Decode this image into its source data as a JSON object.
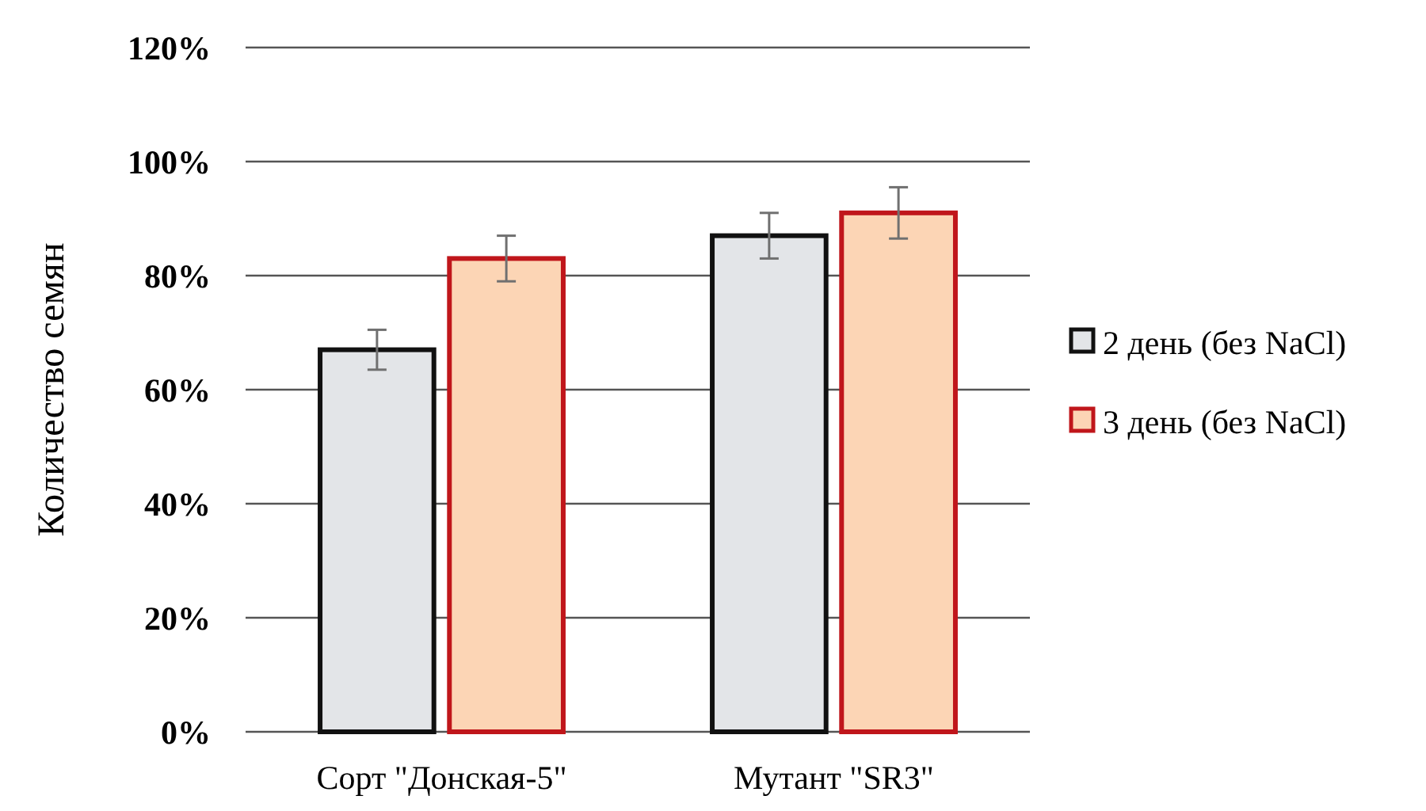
{
  "chart_data": {
    "type": "bar",
    "ylabel": "Количество семян",
    "categories": [
      "Сорт \"Донская-5\"",
      "Мутант \"SR3\""
    ],
    "series": [
      {
        "name": "2 день (без NaCl)",
        "color": "#e3e5e8",
        "values": [
          67,
          87
        ],
        "errors": [
          3.5,
          4
        ]
      },
      {
        "name": "3 день (без NaCl)",
        "color": "#fcd5b5",
        "values": [
          83,
          91
        ],
        "errors": [
          4,
          4.5
        ]
      }
    ],
    "ylim": [
      0,
      120
    ],
    "yticks": [
      {
        "value": 0,
        "label": "0%"
      },
      {
        "value": 20,
        "label": "20%"
      },
      {
        "value": 40,
        "label": "40%"
      },
      {
        "value": 60,
        "label": "60%"
      },
      {
        "value": 80,
        "label": "80%"
      },
      {
        "value": 100,
        "label": "100%"
      },
      {
        "value": 120,
        "label": "120%"
      }
    ],
    "grid": "y",
    "legend": "right"
  }
}
